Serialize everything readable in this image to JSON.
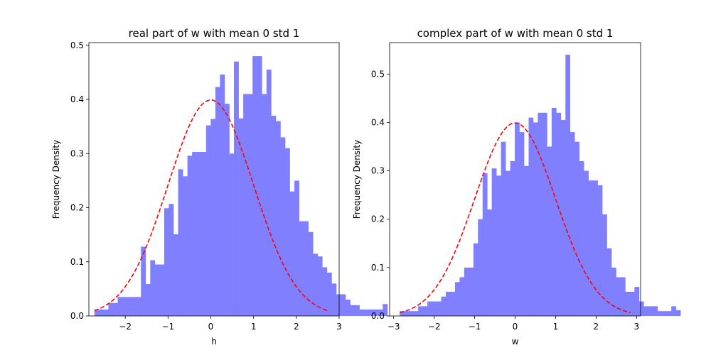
{
  "chart_data": [
    {
      "type": "bar",
      "title": "real part of w with mean 0 std 1",
      "xlabel": "h",
      "ylabel": "Frequency Density",
      "xlim": [
        -2.85,
        3.0
      ],
      "ylim": [
        0,
        0.505
      ],
      "xticks": [
        -2,
        -1,
        0,
        1,
        2,
        3
      ],
      "xtick_labels": [
        "−2",
        "−1",
        "0",
        "1",
        "2",
        "3"
      ],
      "yticks": [
        0.0,
        0.1,
        0.2,
        0.3,
        0.4,
        0.5
      ],
      "ytick_labels": [
        "0.0",
        "0.1",
        "0.2",
        "0.3",
        "0.4",
        "0.5"
      ],
      "grid": false,
      "bar_color": "#7f7fff",
      "bins": {
        "start": -2.72,
        "width": 0.1087,
        "values": [
          0.012,
          0.012,
          0.012,
          0.024,
          0.024,
          0.035,
          0.035,
          0.035,
          0.035,
          0.035,
          0.128,
          0.059,
          0.103,
          0.095,
          0.095,
          0.199,
          0.207,
          0.151,
          0.271,
          0.258,
          0.296,
          0.303,
          0.303,
          0.303,
          0.352,
          0.364,
          0.423,
          0.446,
          0.392,
          0.3,
          0.47,
          0.365,
          0.41,
          0.41,
          0.48,
          0.48,
          0.41,
          0.455,
          0.37,
          0.36,
          0.33,
          0.31,
          0.23,
          0.25,
          0.175,
          0.175,
          0.155,
          0.115,
          0.11,
          0.09,
          0.08,
          0.06,
          0.04,
          0.04,
          0.03,
          0.02,
          0.02,
          0.012,
          0.012,
          0.012,
          0.012,
          0.012,
          0.022
        ]
      },
      "overlay": {
        "type": "line",
        "name": "normal pdf",
        "mean": 0,
        "std": 1,
        "x_range": [
          -2.72,
          2.72
        ],
        "color": "#ff0000",
        "style": "dashed"
      }
    },
    {
      "type": "bar",
      "title": "complex part of w with mean 0 std 1",
      "xlabel": "w",
      "ylabel": "Frequency Density",
      "xlim": [
        -3.1,
        3.1
      ],
      "ylim": [
        0,
        0.565
      ],
      "xticks": [
        -3,
        -2,
        -1,
        0,
        1,
        2,
        3
      ],
      "xtick_labels": [
        "−3",
        "−2",
        "−1",
        "0",
        "1",
        "2",
        "3"
      ],
      "yticks": [
        0.0,
        0.1,
        0.2,
        0.3,
        0.4,
        0.5
      ],
      "ytick_labels": [
        "0.0",
        "0.1",
        "0.2",
        "0.3",
        "0.4",
        "0.5"
      ],
      "grid": false,
      "bar_color": "#7f7fff",
      "bins": {
        "start": -2.85,
        "width": 0.1137,
        "values": [
          0.01,
          0.01,
          0.01,
          0.01,
          0.02,
          0.02,
          0.03,
          0.03,
          0.03,
          0.04,
          0.05,
          0.05,
          0.07,
          0.08,
          0.1,
          0.1,
          0.15,
          0.2,
          0.295,
          0.22,
          0.305,
          0.29,
          0.36,
          0.3,
          0.32,
          0.4,
          0.38,
          0.31,
          0.41,
          0.4,
          0.42,
          0.42,
          0.35,
          0.43,
          0.42,
          0.405,
          0.54,
          0.38,
          0.36,
          0.32,
          0.3,
          0.28,
          0.28,
          0.27,
          0.21,
          0.14,
          0.1,
          0.08,
          0.08,
          0.05,
          0.05,
          0.06,
          0.03,
          0.02,
          0.02,
          0.02,
          0.01,
          0.01,
          0.01,
          0.02,
          0.012
        ]
      },
      "overlay": {
        "type": "line",
        "name": "normal pdf",
        "mean": 0,
        "std": 1,
        "x_range": [
          -2.85,
          2.85
        ],
        "color": "#ff0000",
        "style": "dashed"
      }
    }
  ]
}
